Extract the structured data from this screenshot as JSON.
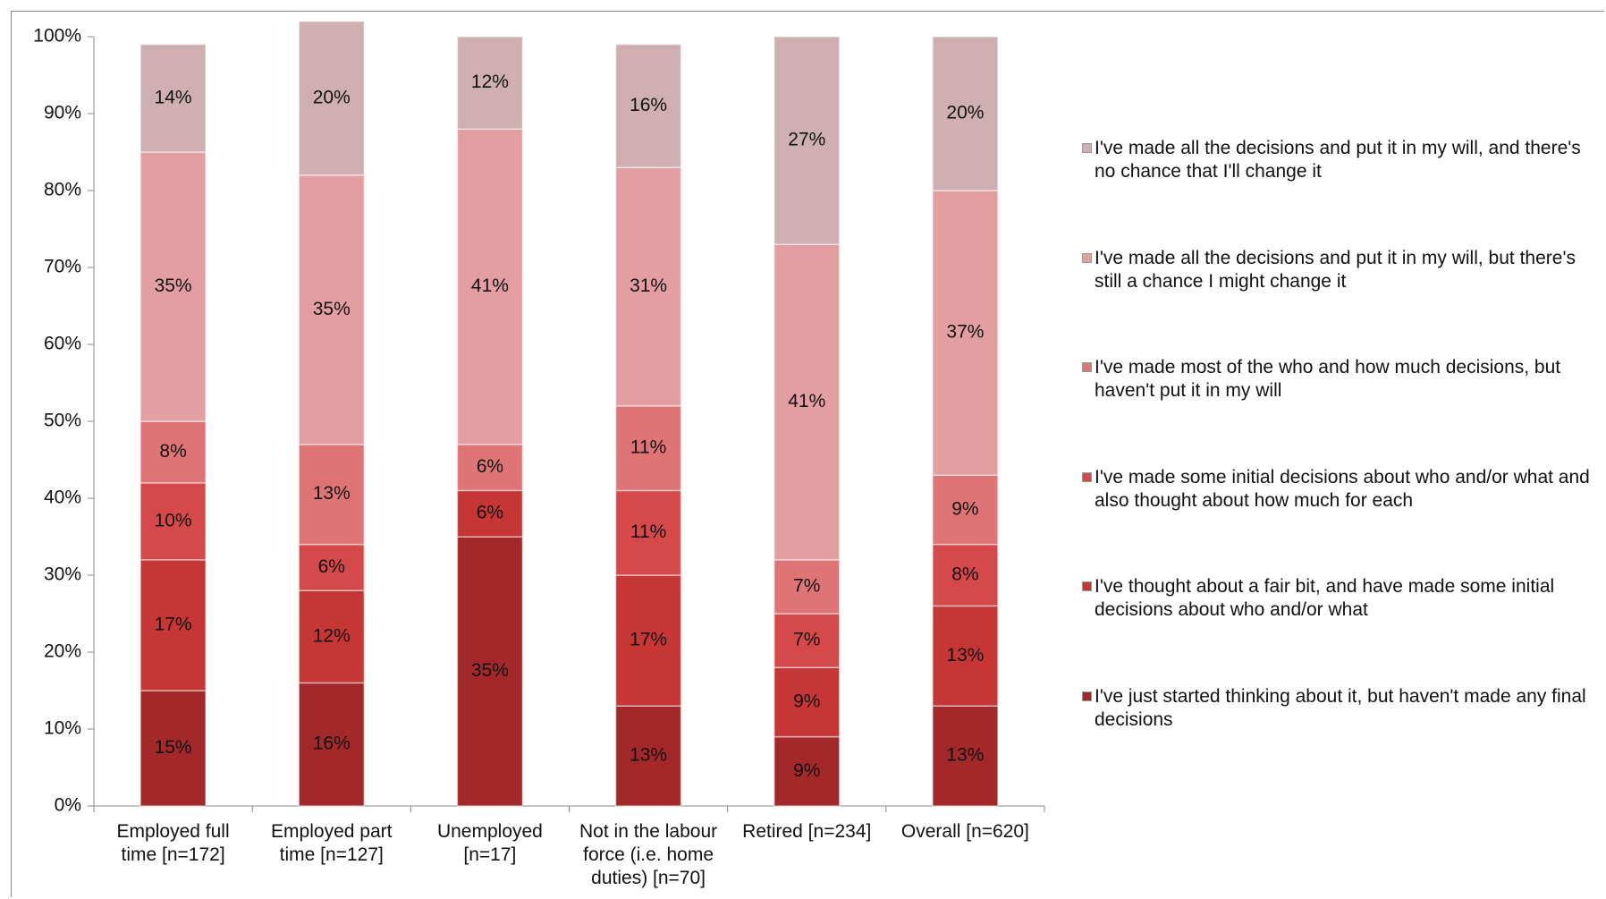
{
  "chart_data": {
    "type": "stacked-bar",
    "categories": [
      "Employed full time [n=172]",
      "Employed part time [n=127]",
      "Unemployed [n=17]",
      "Not in the labour force (i.e. home duties) [n=70]",
      "Retired [n=234]",
      "Overall [n=620]"
    ],
    "series": [
      {
        "name": "I've just started thinking about it, but haven't made any final decisions",
        "color": "#a3282a",
        "values": [
          15,
          16,
          35,
          13,
          9,
          13
        ],
        "value_labels": [
          "15%",
          "16%",
          "35%",
          "13%",
          "9%",
          "13%"
        ]
      },
      {
        "name": "I've thought about a fair bit, and have made some initial decisions about who and/or what",
        "color": "#c53635",
        "values": [
          17,
          12,
          6,
          17,
          9,
          13
        ],
        "value_labels": [
          "17%",
          "12%",
          "6%",
          "17%",
          "9%",
          "13%"
        ]
      },
      {
        "name": "I've made some initial decisions about who and/or what and also thought about how much for each",
        "color": "#d6494a",
        "values": [
          10,
          6,
          null,
          11,
          7,
          8
        ],
        "value_labels": [
          "10%",
          "6%",
          null,
          "11%",
          "7%",
          "8%"
        ]
      },
      {
        "name": "I've made most of the who and how much decisions, but haven't put it in my will",
        "color": "#df7476",
        "values": [
          8,
          13,
          6,
          11,
          7,
          9
        ],
        "value_labels": [
          "8%",
          "13%",
          "6%",
          "11%",
          "7%",
          "9%"
        ]
      },
      {
        "name": "I've made all the decisions and put it in my will, but there's still a chance I might change it",
        "color": "#e39ea1",
        "values": [
          35,
          35,
          41,
          31,
          41,
          37
        ],
        "value_labels": [
          "35%",
          "35%",
          "41%",
          "31%",
          "41%",
          "37%"
        ]
      },
      {
        "name": "I've made all the decisions and put it in my will, and there's no chance that I'll change it",
        "color": "#cfafb1",
        "values": [
          14,
          20,
          12,
          16,
          27,
          20
        ],
        "value_labels": [
          "14%",
          "20%",
          "12%",
          "16%",
          "27%",
          "20%"
        ]
      }
    ],
    "ylim": [
      0,
      100
    ],
    "yticks": [
      {
        "value": 0,
        "label": "0%"
      },
      {
        "value": 10,
        "label": "10%"
      },
      {
        "value": 20,
        "label": "20%"
      },
      {
        "value": 30,
        "label": "30%"
      },
      {
        "value": 40,
        "label": "40%"
      },
      {
        "value": 50,
        "label": "50%"
      },
      {
        "value": 60,
        "label": "60%"
      },
      {
        "value": 70,
        "label": "70%"
      },
      {
        "value": 80,
        "label": "80%"
      },
      {
        "value": 90,
        "label": "90%"
      },
      {
        "value": 100,
        "label": "100%"
      }
    ],
    "grid": false
  }
}
